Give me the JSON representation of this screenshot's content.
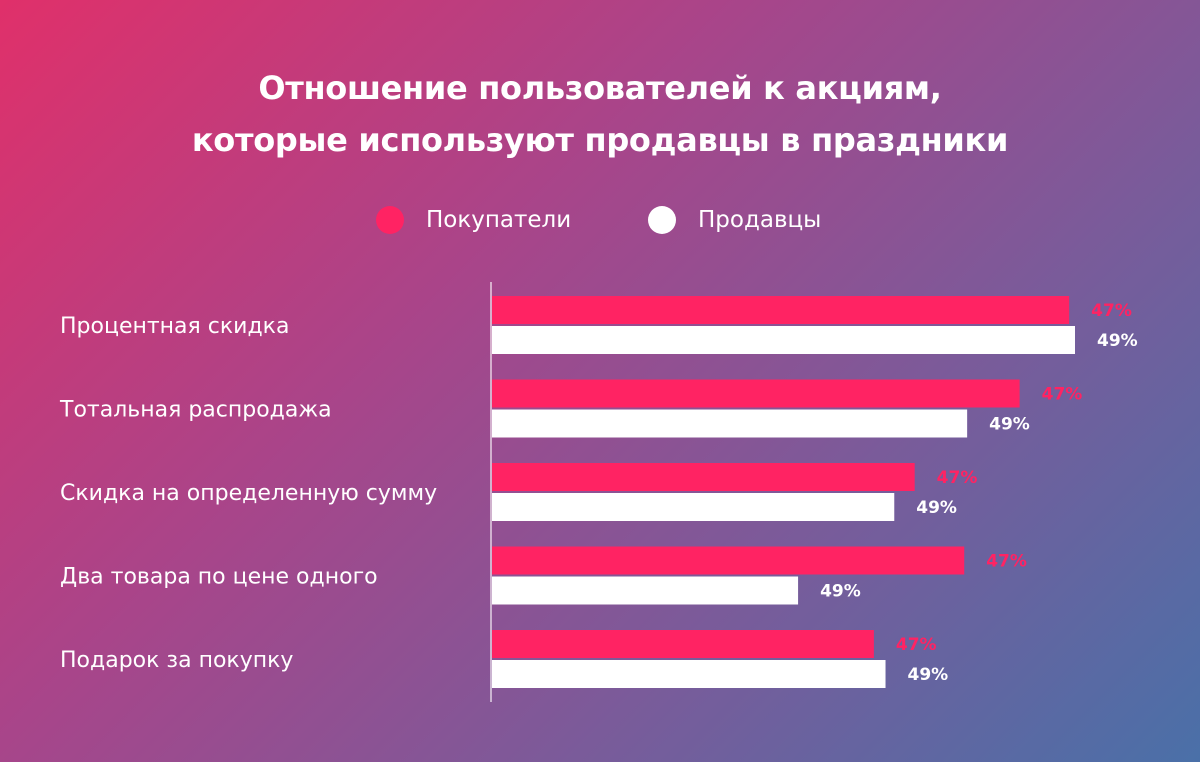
{
  "chart_data": {
    "type": "bar",
    "orientation": "horizontal",
    "title": [
      "Отношение пользователей к акциям,",
      "которые используют продавцы в праздники"
    ],
    "categories": [
      "Процентная скидка",
      "Тотальная распродажа",
      "Скидка на определенную сумму",
      "Два товара по цене одного",
      "Подарок за покупку"
    ],
    "series": [
      {
        "name": "Покупатели",
        "color": "#ff2363",
        "values": [
          47,
          47,
          47,
          47,
          47
        ],
        "relative_length": [
          0.99,
          0.905,
          0.725,
          0.81,
          0.655
        ],
        "labels": [
          "47%",
          "47%",
          "47%",
          "47%",
          "47%"
        ]
      },
      {
        "name": "Продавцы",
        "color": "#ffffff",
        "values": [
          49,
          49,
          49,
          49,
          49
        ],
        "relative_length": [
          1.0,
          0.815,
          0.69,
          0.525,
          0.675
        ],
        "labels": [
          "49%",
          "49%",
          "49%",
          "49%",
          "49%"
        ]
      }
    ],
    "legend_position": "top-center",
    "grid": false
  }
}
